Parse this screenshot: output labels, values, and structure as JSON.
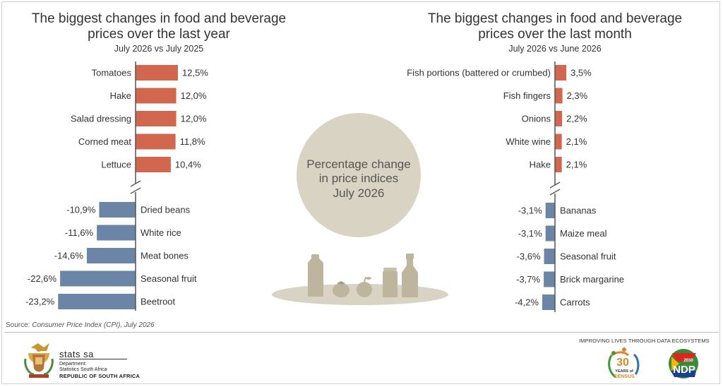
{
  "chart_data": [
    {
      "type": "bar",
      "orientation": "horizontal",
      "title": "The biggest changes in food and beverage prices over the last year",
      "title_lines": [
        "The biggest changes in food and beverage",
        "prices over the last year"
      ],
      "subtitle": "July 2026 vs July 2025",
      "categories": [
        "Tomatoes",
        "Hake",
        "Salad dressing",
        "Corned meat",
        "Lettuce",
        "Dried beans",
        "White rice",
        "Meat bones",
        "Seasonal fruit",
        "Beetroot"
      ],
      "values": [
        12.5,
        12.0,
        12.0,
        11.8,
        10.4,
        -10.9,
        -11.6,
        -14.6,
        -22.6,
        -23.2
      ],
      "value_labels": [
        "12,5%",
        "12,0%",
        "12,0%",
        "11,8%",
        "10,4%",
        "-10,9%",
        "-11,6%",
        "-14,6%",
        "-22,6%",
        "-23,2%"
      ],
      "unit": "%",
      "axis_break": true,
      "colors": {
        "positive": "#d2674f",
        "negative": "#6b85a6"
      }
    },
    {
      "type": "bar",
      "orientation": "horizontal",
      "title": "The biggest changes in food and beverage prices over the last month",
      "title_lines": [
        "The biggest changes in food and beverage",
        "prices over the last month"
      ],
      "subtitle": "July 2026 vs June 2026",
      "categories": [
        "Fish portions (battered or crumbed)",
        "Fish fingers",
        "Onions",
        "White wine",
        "Hake",
        "Bananas",
        "Maize meal",
        "Seasonal fruit",
        "Brick margarine",
        "Carrots"
      ],
      "values": [
        3.5,
        2.3,
        2.2,
        2.1,
        2.1,
        -3.1,
        -3.1,
        -3.6,
        -3.7,
        -4.2
      ],
      "value_labels": [
        "3,5%",
        "2,3%",
        "2,2%",
        "2,1%",
        "2,1%",
        "-3,1%",
        "-3,1%",
        "-3,6%",
        "-3,7%",
        "-4,2%"
      ],
      "unit": "%",
      "axis_break": true,
      "colors": {
        "positive": "#d2674f",
        "negative": "#6b85a6"
      }
    }
  ],
  "center": {
    "lines": [
      "Percentage change",
      "in price indices",
      "July 2026"
    ],
    "circle_color": "#d9d3c4",
    "icon_color": "#bdb59e",
    "icons": [
      "milk-bottle-icon",
      "tomato-icon",
      "apple-icon",
      "can-icon",
      "bottle-icon"
    ]
  },
  "source": {
    "prefix": "Source: ",
    "text": "Consumer Price Index (CPI), July 2026"
  },
  "footer": {
    "org_name": "stats sa",
    "dept_line1": "Department:",
    "dept_line2": "Statistics South Africa",
    "country": "REPUBLIC OF SOUTH AFRICA",
    "slogan": "IMPROVING LIVES THROUGH DATA ECOSYSTEMS",
    "census_num": "30",
    "census_years": "YEARS of",
    "census_word": "CENSUS",
    "ndp_year": "2030",
    "ndp_word": "NDP"
  }
}
